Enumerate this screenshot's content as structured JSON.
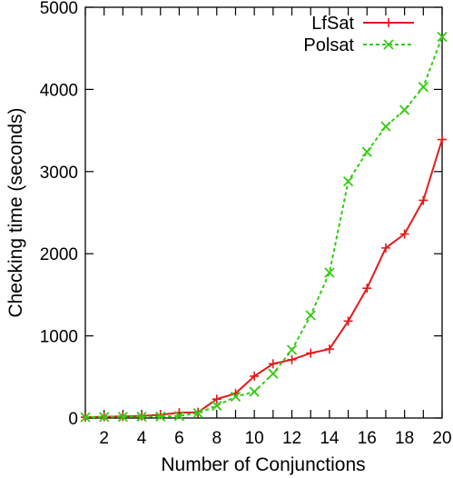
{
  "chart_data": {
    "type": "line",
    "title": "",
    "xlabel": "Number of Conjunctions",
    "ylabel": "Checking time (seconds)",
    "xlim": [
      1,
      20
    ],
    "ylim": [
      0,
      5000
    ],
    "x_ticks": [
      2,
      4,
      6,
      8,
      10,
      12,
      14,
      16,
      18,
      20
    ],
    "y_ticks": [
      0,
      1000,
      2000,
      3000,
      4000,
      5000
    ],
    "grid": false,
    "legend_position": "top-right",
    "x": [
      1,
      2,
      3,
      4,
      5,
      6,
      7,
      8,
      9,
      10,
      11,
      12,
      13,
      14,
      15,
      16,
      17,
      18,
      19,
      20
    ],
    "series": [
      {
        "name": "LfSat",
        "color": "#e31a1c",
        "dash": "solid",
        "marker": "plus",
        "values": [
          10,
          15,
          20,
          25,
          40,
          65,
          70,
          230,
          300,
          510,
          660,
          710,
          790,
          840,
          1180,
          1580,
          2070,
          2240,
          2650,
          3390
        ]
      },
      {
        "name": "Polsat",
        "color": "#33cc11",
        "dash": "dashed",
        "marker": "x",
        "values": [
          10,
          12,
          14,
          16,
          18,
          25,
          60,
          150,
          260,
          320,
          540,
          830,
          1250,
          1770,
          2880,
          3240,
          3550,
          3750,
          4030,
          4640
        ]
      }
    ]
  }
}
